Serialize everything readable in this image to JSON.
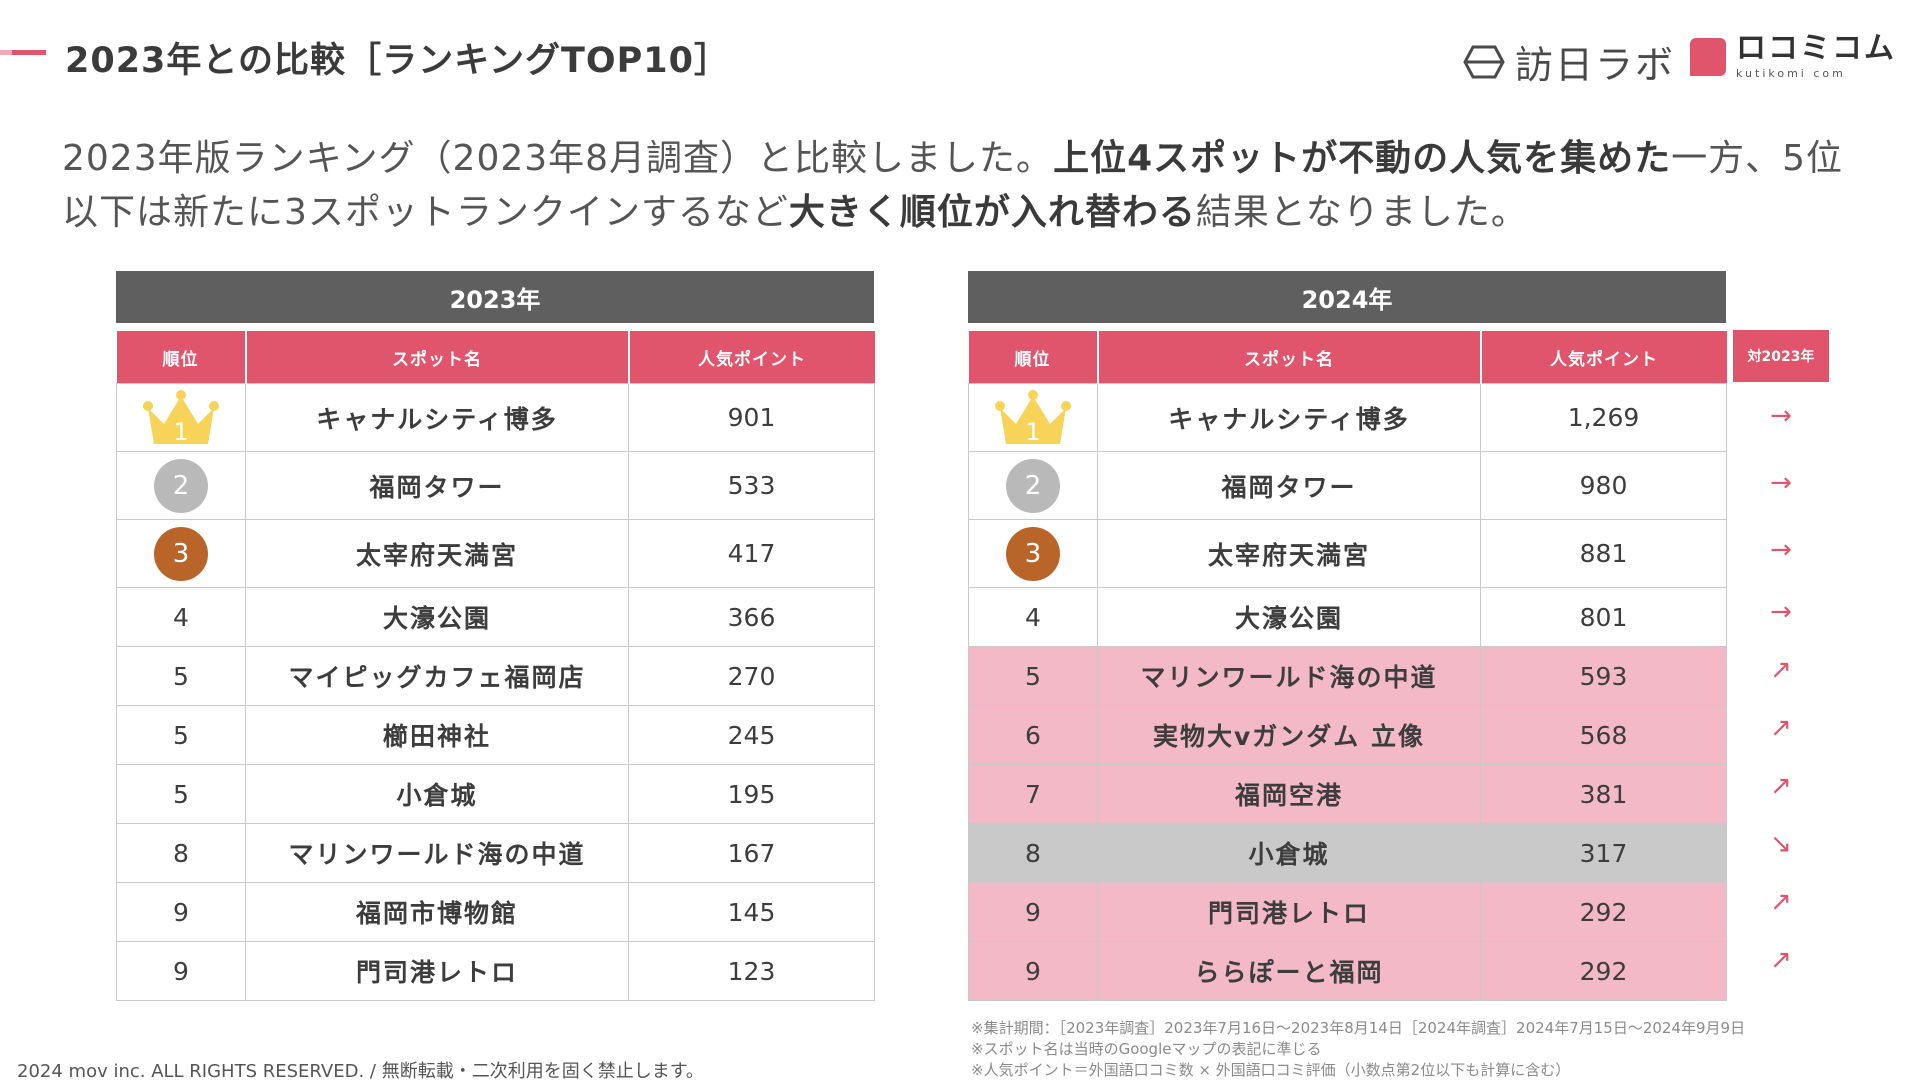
{
  "header": {
    "title": "2023年との比較［ランキングTOP10］",
    "brand_houjin": "訪日ラボ",
    "brand_kutikomi": "ロコミコム",
    "brand_kutikomi_sub": "kutikomi com",
    "accent_color": "#e0546c"
  },
  "lead": {
    "p1": "2023年版ランキング（2023年8月調査）と比較しました。",
    "b1": "上位4スポットが不動の人気を集めた",
    "p2": "一方、5位以下は新たに3スポットランクインするなど",
    "b2": "大きく順位が入れ替わる",
    "p3": "結果となりました。"
  },
  "columns": {
    "rank": "順位",
    "spot": "スポット名",
    "points": "人気ポイント",
    "change": "対2023年"
  },
  "table2023": {
    "year": "2023年",
    "rows": [
      {
        "rank": "1",
        "spot": "キャナルシティ博多",
        "points": "901"
      },
      {
        "rank": "2",
        "spot": "福岡タワー",
        "points": "533"
      },
      {
        "rank": "3",
        "spot": "太宰府天満宮",
        "points": "417"
      },
      {
        "rank": "4",
        "spot": "大濠公園",
        "points": "366"
      },
      {
        "rank": "5",
        "spot": "マイピッグカフェ福岡店",
        "points": "270"
      },
      {
        "rank": "5",
        "spot": "櫛田神社",
        "points": "245"
      },
      {
        "rank": "5",
        "spot": "小倉城",
        "points": "195"
      },
      {
        "rank": "8",
        "spot": "マリンワールド海の中道",
        "points": "167"
      },
      {
        "rank": "9",
        "spot": "福岡市博物館",
        "points": "145"
      },
      {
        "rank": "9",
        "spot": "門司港レトロ",
        "points": "123"
      }
    ]
  },
  "table2024": {
    "year": "2024年",
    "rows": [
      {
        "rank": "1",
        "spot": "キャナルシティ博多",
        "points": "1,269",
        "change": "→"
      },
      {
        "rank": "2",
        "spot": "福岡タワー",
        "points": "980",
        "change": "→"
      },
      {
        "rank": "3",
        "spot": "太宰府天満宮",
        "points": "881",
        "change": "→"
      },
      {
        "rank": "4",
        "spot": "大濠公園",
        "points": "801",
        "change": "→"
      },
      {
        "rank": "5",
        "spot": "マリンワールド海の中道",
        "points": "593",
        "change": "↗"
      },
      {
        "rank": "6",
        "spot": "実物大vガンダム 立像",
        "points": "568",
        "change": "↗"
      },
      {
        "rank": "7",
        "spot": "福岡空港",
        "points": "381",
        "change": "↗"
      },
      {
        "rank": "8",
        "spot": "小倉城",
        "points": "317",
        "change": "↘"
      },
      {
        "rank": "9",
        "spot": "門司港レトロ",
        "points": "292",
        "change": "↗"
      },
      {
        "rank": "9",
        "spot": "ららぽーと福岡",
        "points": "292",
        "change": "↗"
      }
    ]
  },
  "footnotes": [
    "※集計期間：［2023年調査］2023年7月16日〜2023年8月14日［2024年調査］2024年7月15日〜2024年9月9日",
    "※スポット名は当時のGoogleマップの表記に準じる",
    "※人気ポイント＝外国語口コミ数 × 外国語口コミ評価（小数点第2位以下も計算に含む）"
  ],
  "copyright": "2024 mov inc. ALL RIGHTS RESERVED. / 無断転載・二次利用を固く禁止します。",
  "colors": {
    "accent": "#e0546c",
    "new_entry": "#f3b9c6",
    "dropped": "#c9c9c9",
    "header_gray": "#5f5f5f",
    "gold": "#f7d35a",
    "silver": "#b9b9b9",
    "bronze": "#b9652a"
  },
  "icons": {
    "crown": "crown-icon",
    "same": "arrow-right-icon",
    "up": "arrow-up-right-icon",
    "down": "arrow-down-right-icon"
  }
}
